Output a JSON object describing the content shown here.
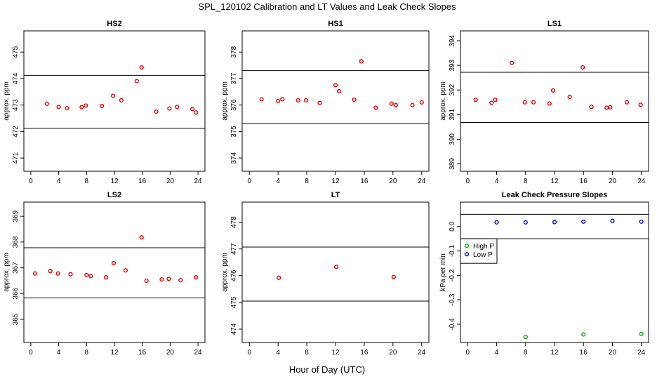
{
  "figure": {
    "title": "SPL_120102  Calibration and LT Values and Leak Check Slopes",
    "xlabel": "Hour of Day (UTC)"
  },
  "chart_data": [
    {
      "type": "scatter",
      "id": "hs2",
      "title": "HS2",
      "ylabel": "approx. ppm",
      "xlim": [
        -1,
        25
      ],
      "ylim": [
        470.5,
        475.8
      ],
      "xticks": [
        0,
        4,
        8,
        12,
        16,
        20,
        24
      ],
      "yticks": [
        471,
        472,
        473,
        474,
        475
      ],
      "hlines": [
        472.12,
        474.12
      ],
      "color": "#e00000",
      "x": [
        2.3,
        4.0,
        5.2,
        7.3,
        7.9,
        10.2,
        11.8,
        13.0,
        15.2,
        15.9,
        18.0,
        19.9,
        21.0,
        23.2,
        23.7
      ],
      "y": [
        473.05,
        472.93,
        472.88,
        472.92,
        472.98,
        472.97,
        473.35,
        473.18,
        473.9,
        474.42,
        472.75,
        472.87,
        472.93,
        472.85,
        472.72
      ]
    },
    {
      "type": "scatter",
      "id": "hs1",
      "title": "HS1",
      "ylabel": "approx. ppm",
      "xlim": [
        -1,
        25
      ],
      "ylim": [
        373.5,
        378.8
      ],
      "xticks": [
        0,
        4,
        8,
        12,
        16,
        20,
        24
      ],
      "yticks": [
        374,
        375,
        376,
        377,
        378
      ],
      "hlines": [
        375.3,
        377.3
      ],
      "color": "#e00000",
      "x": [
        1.7,
        4.0,
        4.6,
        6.8,
        7.9,
        9.8,
        12.0,
        12.5,
        14.6,
        15.6,
        17.6,
        19.8,
        20.4,
        22.7,
        24.0
      ],
      "y": [
        376.22,
        376.15,
        376.22,
        376.18,
        376.18,
        376.08,
        376.75,
        376.52,
        376.2,
        377.65,
        375.9,
        376.05,
        376.0,
        376.0,
        376.1
      ]
    },
    {
      "type": "scatter",
      "id": "ls1",
      "title": "LS1",
      "ylabel": "approx. ppm",
      "xlim": [
        -1,
        25
      ],
      "ylim": [
        388.7,
        394.4
      ],
      "xticks": [
        0,
        4,
        8,
        12,
        16,
        20,
        24
      ],
      "yticks": [
        389,
        390,
        391,
        392,
        393,
        394
      ],
      "hlines": [
        390.68,
        392.72
      ],
      "color": "#e00000",
      "x": [
        1.1,
        3.3,
        3.8,
        6.1,
        7.9,
        9.1,
        11.3,
        11.8,
        14.1,
        15.9,
        17.1,
        19.2,
        19.7,
        22.0,
        23.9
      ],
      "y": [
        391.6,
        391.48,
        391.6,
        393.1,
        391.5,
        391.5,
        391.45,
        391.98,
        391.72,
        392.92,
        391.32,
        391.28,
        391.3,
        391.5,
        391.4
      ]
    },
    {
      "type": "scatter",
      "id": "ls2",
      "title": "LS2",
      "ylabel": "approx. ppm",
      "xlim": [
        -1,
        25
      ],
      "ylim": [
        364.1,
        369.55
      ],
      "xticks": [
        0,
        4,
        8,
        12,
        16,
        20,
        24
      ],
      "yticks": [
        365,
        366,
        367,
        368,
        369
      ],
      "hlines": [
        365.83,
        367.78
      ],
      "color": "#e00000",
      "x": [
        0.6,
        2.8,
        3.9,
        5.7,
        8.0,
        8.6,
        10.8,
        11.9,
        13.6,
        15.9,
        16.6,
        18.8,
        19.8,
        21.5,
        23.7
      ],
      "y": [
        366.78,
        366.87,
        366.78,
        366.75,
        366.72,
        366.68,
        366.63,
        367.18,
        366.9,
        368.18,
        366.5,
        366.55,
        366.57,
        366.52,
        366.63
      ]
    },
    {
      "type": "scatter",
      "id": "lt",
      "title": "LT",
      "ylabel": "approx. ppm",
      "xlim": [
        -1,
        25
      ],
      "ylim": [
        473.5,
        478.75
      ],
      "xticks": [
        0,
        4,
        8,
        12,
        16,
        20,
        24
      ],
      "yticks": [
        474,
        475,
        476,
        477,
        478
      ],
      "hlines": [
        475.05,
        477.07
      ],
      "color": "#e00000",
      "x": [
        4.1,
        12.1,
        20.1
      ],
      "y": [
        475.92,
        476.33,
        475.95
      ]
    },
    {
      "type": "scatter",
      "id": "leak",
      "title": "Leak Check Pressure Slopes",
      "ylabel": "kPa per min",
      "xlim": [
        -1,
        25
      ],
      "ylim": [
        -0.475,
        0.1
      ],
      "xticks": [
        0,
        4,
        8,
        12,
        16,
        20,
        24
      ],
      "yticks": [
        0.0,
        -0.1,
        -0.2,
        -0.3,
        -0.4
      ],
      "hlines": [
        0.05,
        -0.05
      ],
      "legend": {
        "location": "top-left",
        "entries": [
          "High P",
          "Low P"
        ]
      },
      "series": [
        {
          "name": "High P",
          "color": "#00b000",
          "x": [
            8.0,
            16.0,
            24.0
          ],
          "y": [
            -0.452,
            -0.442,
            -0.44
          ]
        },
        {
          "name": "Low P",
          "color": "#0000c8",
          "x": [
            4.0,
            8.0,
            12.0,
            16.0,
            20.0,
            24.0
          ],
          "y": [
            0.017,
            0.017,
            0.018,
            0.02,
            0.023,
            0.02
          ]
        }
      ]
    }
  ]
}
